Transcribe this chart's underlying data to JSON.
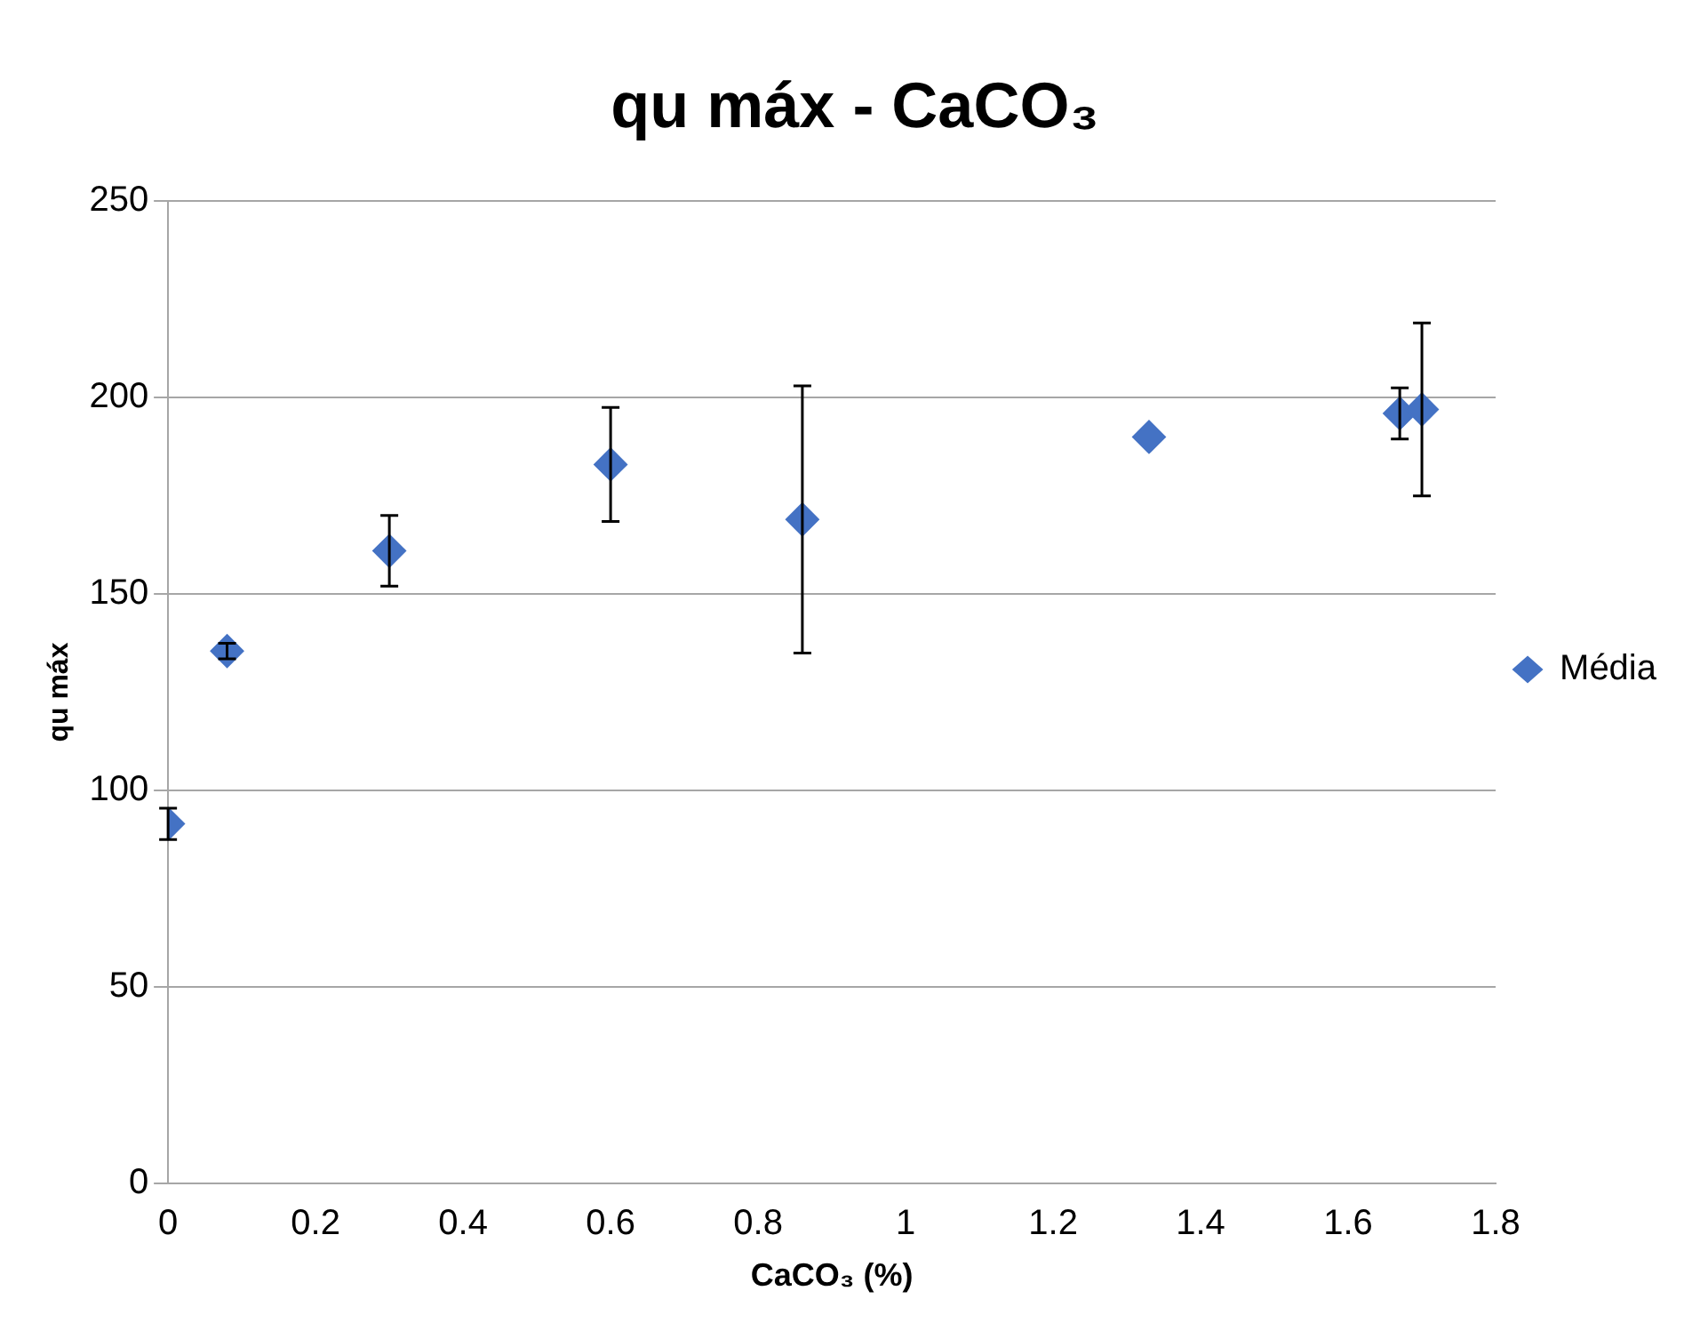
{
  "chart_data": {
    "type": "scatter",
    "title": "qu máx - CaCO₃",
    "xlabel": "CaCO₃ (%)",
    "ylabel": "qu máx",
    "x": [
      0,
      0.08,
      0.3,
      0.6,
      0.86,
      1.33,
      1.67,
      1.7
    ],
    "series": [
      {
        "name": "Média",
        "color": "#4472c4",
        "values": [
          91.5,
          135.5,
          161,
          183,
          169,
          190,
          196,
          197
        ],
        "errors": [
          4,
          2,
          9,
          14.5,
          34,
          null,
          6.5,
          22
        ]
      }
    ],
    "xlim": [
      0,
      1.8
    ],
    "xticks": [
      0,
      0.2,
      0.4,
      0.6,
      0.8,
      1,
      1.2,
      1.4,
      1.6,
      1.8
    ],
    "ylim": [
      0,
      250
    ],
    "yticks": [
      0,
      50,
      100,
      150,
      200,
      250
    ],
    "grid": "y",
    "legend": "right",
    "marker": "diamond"
  }
}
